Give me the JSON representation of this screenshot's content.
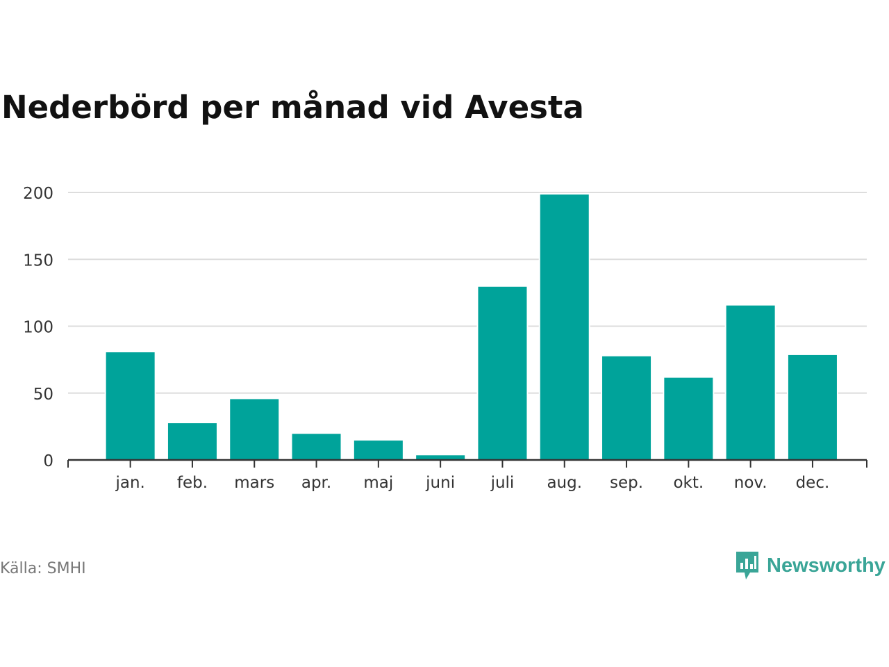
{
  "title": "Nederbörd per månad vid Avesta",
  "source": "Källa: SMHI",
  "brand": {
    "name": "Newsworthy",
    "color": "#3aa597"
  },
  "chart_data": {
    "type": "bar",
    "title": "Nederbörd per månad vid Avesta",
    "xlabel": "",
    "ylabel": "",
    "categories": [
      "jan.",
      "feb.",
      "mars",
      "apr.",
      "maj",
      "juni",
      "juli",
      "aug.",
      "sep.",
      "okt.",
      "nov.",
      "dec."
    ],
    "values": [
      81,
      28,
      46,
      20,
      15,
      4,
      130,
      199,
      78,
      62,
      116,
      79
    ],
    "ylim": [
      0,
      200
    ],
    "yticks": [
      0,
      50,
      100,
      150,
      200
    ],
    "grid": true,
    "bar_color": "#00a39a"
  }
}
